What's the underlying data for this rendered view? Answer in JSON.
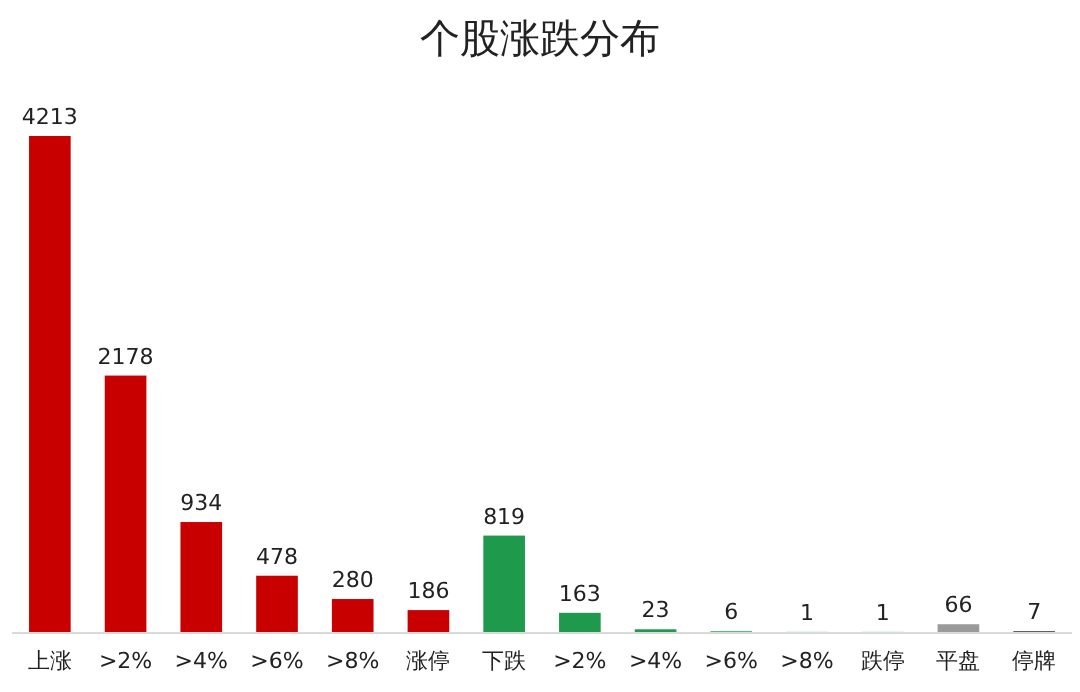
{
  "chart_data": {
    "type": "bar",
    "title": "个股涨跌分布",
    "categories": [
      "上涨",
      ">2%",
      ">4%",
      ">6%",
      ">8%",
      "涨停",
      "下跌",
      ">2%",
      ">4%",
      ">6%",
      ">8%",
      "跌停",
      "平盘",
      "停牌"
    ],
    "values": [
      4213,
      2178,
      934,
      478,
      280,
      186,
      819,
      163,
      23,
      6,
      1,
      1,
      66,
      7
    ],
    "colors": [
      "#c80000",
      "#c80000",
      "#c80000",
      "#c80000",
      "#c80000",
      "#c80000",
      "#1f9a4c",
      "#1f9a4c",
      "#1f9a4c",
      "#1f9a4c",
      "#1f9a4c",
      "#1f9a4c",
      "#9a9a9a",
      "#404040"
    ],
    "data_labels": true
  }
}
